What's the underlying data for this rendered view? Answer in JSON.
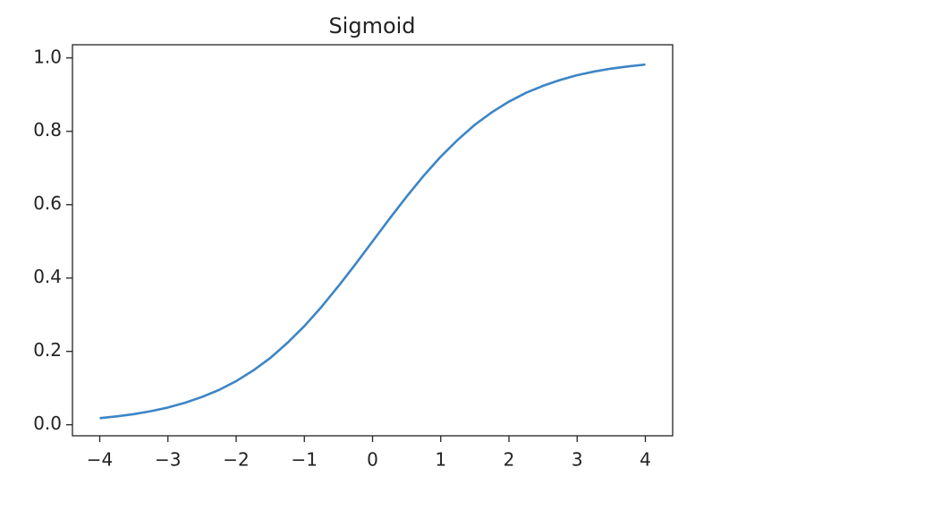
{
  "chart_data": {
    "type": "line",
    "title": "Sigmoid",
    "x": [
      -4,
      -3.75,
      -3.5,
      -3.25,
      -3,
      -2.75,
      -2.5,
      -2.25,
      -2,
      -1.75,
      -1.5,
      -1.25,
      -1,
      -0.75,
      -0.5,
      -0.25,
      0,
      0.25,
      0.5,
      0.75,
      1,
      1.25,
      1.5,
      1.75,
      2,
      2.25,
      2.5,
      2.75,
      3,
      3.25,
      3.5,
      3.75,
      4
    ],
    "series": [
      {
        "color": "#3d85c6",
        "values": [
          0.018,
          0.023,
          0.029,
          0.037,
          0.047,
          0.06,
          0.076,
          0.095,
          0.119,
          0.148,
          0.182,
          0.223,
          0.269,
          0.321,
          0.378,
          0.438,
          0.5,
          0.562,
          0.622,
          0.679,
          0.731,
          0.777,
          0.818,
          0.852,
          0.881,
          0.905,
          0.924,
          0.94,
          0.953,
          0.963,
          0.971,
          0.977,
          0.982
        ]
      }
    ],
    "xlim": [
      -4.4,
      4.4
    ],
    "ylim": [
      -0.03,
      1.036
    ],
    "xticks": [
      {
        "value": -4,
        "label": "−4"
      },
      {
        "value": -3,
        "label": "−3"
      },
      {
        "value": -2,
        "label": "−2"
      },
      {
        "value": -1,
        "label": "−1"
      },
      0,
      1,
      2,
      3,
      4
    ],
    "yticks": [
      {
        "value": 0,
        "label": "0.0"
      },
      0.2,
      0.4,
      0.6,
      0.8,
      {
        "value": 1,
        "label": "1.0"
      }
    ],
    "grid": false
  }
}
